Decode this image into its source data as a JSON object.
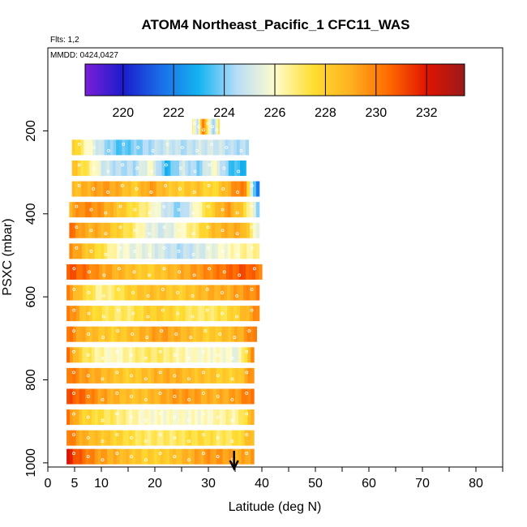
{
  "chart_data": {
    "type": "heatmap",
    "title": "ATOM4 Northeast_Pacific_1 CFC11_WAS",
    "flights_label": "Flts: 1,2",
    "dates_label": "MMDD: 0424,0427",
    "xlabel": "Latitude (deg N)",
    "ylabel": "PSXC (mbar)",
    "xlim": [
      0,
      85
    ],
    "ylim": [
      1010,
      0
    ],
    "x_ticks": [
      0,
      5,
      10,
      20,
      30,
      40,
      50,
      60,
      70,
      80
    ],
    "x_tick_labels": [
      "0",
      "5",
      "10",
      "20",
      "30",
      "40",
      "50",
      "60",
      "70",
      "80"
    ],
    "y_ticks": [
      200,
      400,
      600,
      800,
      1000
    ],
    "y_tick_labels": [
      "200",
      "400",
      "600",
      "800",
      "1000"
    ],
    "colorbar": {
      "range": [
        218.5,
        233.5
      ],
      "ticks": [
        220,
        222,
        224,
        226,
        228,
        230,
        232
      ],
      "tick_labels": [
        "220",
        "222",
        "224",
        "226",
        "228",
        "230",
        "232"
      ],
      "colors": [
        "#7a1fd8",
        "#1c1ccc",
        "#1a6ee8",
        "#14b4f0",
        "#b8ddf8",
        "#fffccc",
        "#ffde33",
        "#ffb020",
        "#ff6a00",
        "#e01400",
        "#9a1a1a"
      ]
    },
    "arrow_latitude": 34.8,
    "data_rows": [
      {
        "pressure": 190,
        "lat_start": 27.0,
        "lat_end": 32.0,
        "values": [
          227.0,
          224.5,
          230.5,
          226.5,
          224.0,
          227.5
        ]
      },
      {
        "pressure": 240,
        "lat_start": 4.5,
        "lat_end": 37.5,
        "values": [
          228.5,
          226.0,
          224.5,
          223.5,
          224.0,
          224.5,
          225.0,
          224.5,
          225.0,
          225.0,
          224.5,
          224.5
        ]
      },
      {
        "pressure": 290,
        "lat_start": 4.5,
        "lat_end": 37.0,
        "values": [
          228.5,
          227.0,
          225.0,
          224.5,
          224.5,
          226.0,
          223.0,
          225.0,
          224.0,
          226.0,
          223.5,
          223.0
        ]
      },
      {
        "pressure": 340,
        "lat_start": 4.5,
        "lat_end": 39.5,
        "values": [
          228.5,
          229.0,
          229.5,
          229.0,
          228.0,
          229.5,
          228.5,
          228.0,
          228.5,
          227.5,
          229.0,
          230.5,
          220.5
        ]
      },
      {
        "pressure": 390,
        "lat_start": 4.0,
        "lat_end": 39.5,
        "values": [
          229.0,
          230.0,
          229.5,
          228.5,
          227.5,
          226.5,
          225.0,
          224.0,
          226.0,
          228.0,
          229.5,
          228.0,
          224.0
        ]
      },
      {
        "pressure": 440,
        "lat_start": 4.0,
        "lat_end": 39.5,
        "values": [
          230.5,
          229.0,
          229.0,
          228.0,
          227.0,
          225.5,
          225.0,
          226.0,
          227.0,
          228.5,
          229.0,
          229.0,
          225.0
        ]
      },
      {
        "pressure": 490,
        "lat_start": 4.0,
        "lat_end": 39.5,
        "values": [
          230.0,
          228.5,
          227.5,
          226.0,
          225.5,
          225.5,
          225.0,
          224.5,
          225.0,
          225.5,
          226.0,
          226.5,
          226.5
        ]
      },
      {
        "pressure": 540,
        "lat_start": 3.5,
        "lat_end": 40.0,
        "values": [
          231.0,
          230.5,
          229.5,
          229.0,
          228.5,
          228.0,
          228.5,
          229.0,
          229.5,
          230.0,
          230.5,
          231.0,
          230.0
        ]
      },
      {
        "pressure": 590,
        "lat_start": 3.5,
        "lat_end": 39.5,
        "values": [
          230.0,
          228.0,
          226.5,
          227.0,
          228.0,
          228.5,
          228.5,
          228.0,
          228.5,
          229.0,
          229.0,
          229.5,
          230.0
        ]
      },
      {
        "pressure": 640,
        "lat_start": 3.5,
        "lat_end": 39.5,
        "values": [
          230.5,
          228.5,
          227.5,
          227.0,
          227.0,
          228.0,
          228.0,
          227.5,
          227.0,
          227.0,
          227.5,
          228.5,
          230.0
        ]
      },
      {
        "pressure": 690,
        "lat_start": 3.5,
        "lat_end": 39.0,
        "values": [
          230.5,
          229.0,
          228.5,
          228.0,
          228.5,
          229.0,
          229.5,
          229.0,
          228.5,
          228.0,
          228.5,
          229.0,
          230.5
        ]
      },
      {
        "pressure": 740,
        "lat_start": 3.5,
        "lat_end": 38.5,
        "values": [
          230.5,
          227.5,
          226.5,
          226.0,
          226.5,
          227.0,
          227.0,
          226.5,
          226.0,
          226.0,
          226.0,
          225.5,
          230.0
        ]
      },
      {
        "pressure": 790,
        "lat_start": 3.5,
        "lat_end": 38.5,
        "values": [
          230.5,
          229.5,
          229.0,
          228.5,
          228.0,
          228.5,
          229.0,
          229.0,
          228.5,
          228.5,
          228.0,
          228.0,
          230.0
        ]
      },
      {
        "pressure": 840,
        "lat_start": 3.5,
        "lat_end": 38.5,
        "values": [
          231.0,
          230.5,
          229.5,
          229.0,
          228.5,
          228.5,
          229.0,
          229.5,
          229.5,
          229.0,
          229.0,
          229.5,
          230.5
        ]
      },
      {
        "pressure": 890,
        "lat_start": 3.5,
        "lat_end": 38.5,
        "values": [
          230.5,
          228.0,
          227.5,
          227.0,
          226.5,
          226.0,
          226.0,
          226.0,
          226.0,
          226.0,
          226.5,
          226.5,
          229.0
        ]
      },
      {
        "pressure": 940,
        "lat_start": 3.5,
        "lat_end": 38.5,
        "values": [
          230.5,
          229.0,
          228.5,
          228.0,
          227.5,
          227.0,
          227.0,
          227.0,
          227.5,
          227.5,
          227.0,
          227.5,
          229.0
        ]
      },
      {
        "pressure": 985,
        "lat_start": 3.5,
        "lat_end": 38.5,
        "values": [
          232.0,
          230.5,
          229.5,
          229.0,
          228.5,
          228.0,
          228.0,
          228.5,
          229.0,
          229.5,
          229.5,
          229.0,
          229.5
        ]
      }
    ]
  }
}
